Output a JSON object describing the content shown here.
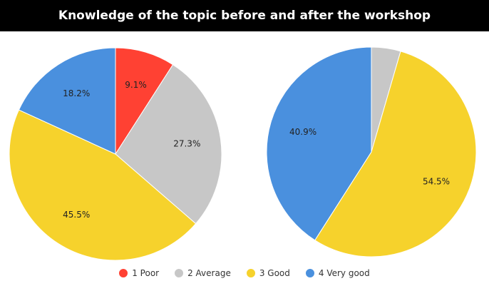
{
  "chart_data": {
    "type": "pie",
    "title": "Knowledge of the topic before and after the workshop",
    "legend_position": "bottom",
    "categories": [
      "1 Poor",
      "2 Average",
      "3 Good",
      "4 Very good"
    ],
    "colors": [
      "#ff4133",
      "#c7c7c7",
      "#f6d22c",
      "#4a90de"
    ],
    "pies": [
      {
        "values": [
          9.1,
          27.3,
          45.5,
          18.2
        ],
        "labels": [
          "9.1%",
          "27.3%",
          "45.5%",
          "18.2%"
        ]
      },
      {
        "values": [
          0,
          4.5,
          54.5,
          40.9
        ],
        "labels": [
          "",
          "",
          "54.5%",
          "40.9%"
        ]
      }
    ]
  }
}
